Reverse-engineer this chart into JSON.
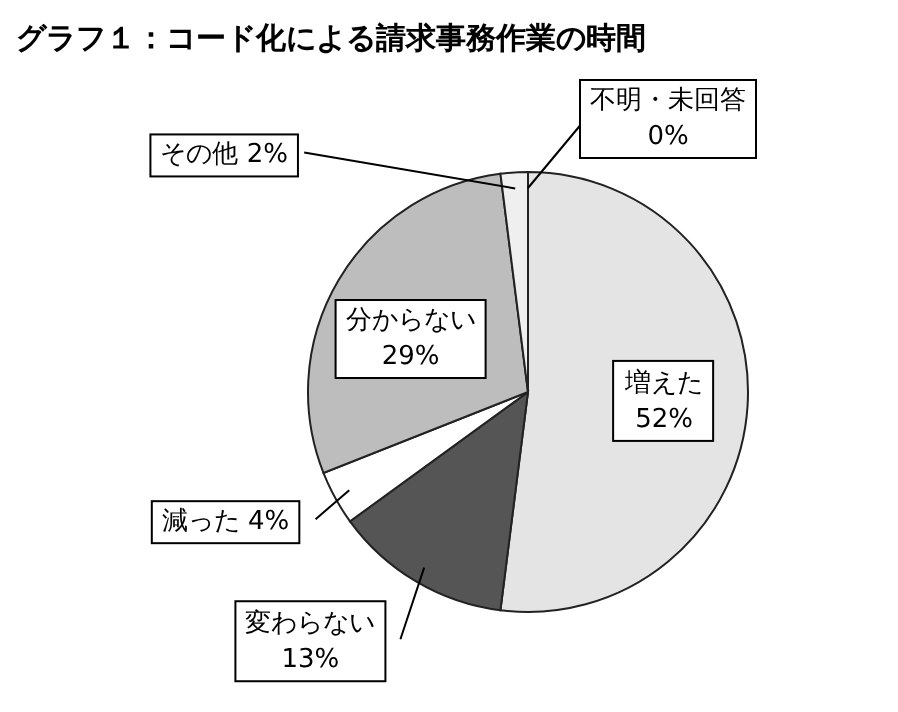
{
  "chart_data": {
    "type": "pie",
    "title": "グラフ１：コード化による請求事務作業の時間",
    "categories": [
      "増えた",
      "変わらない",
      "減った",
      "分からない",
      "その他",
      "不明・未回答"
    ],
    "values": [
      52,
      13,
      4,
      29,
      2,
      0
    ],
    "value_labels": [
      "52%",
      "13%",
      "4%",
      "29%",
      "2%",
      "0%"
    ],
    "colors": [
      "#e4e4e4",
      "#555555",
      "#ffffff",
      "#bdbdbd",
      "#efefef",
      "#000000"
    ],
    "legend": false
  }
}
